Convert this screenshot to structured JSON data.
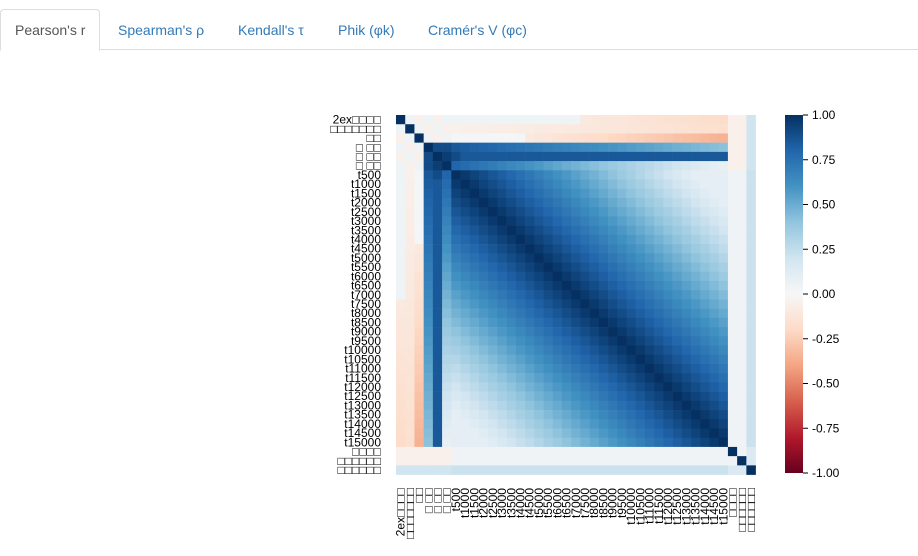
{
  "tabs": [
    {
      "label": "Pearson's r",
      "active": true
    },
    {
      "label": "Spearman's ρ",
      "active": false
    },
    {
      "label": "Kendall's τ",
      "active": false
    },
    {
      "label": "Phik (φk)",
      "active": false
    },
    {
      "label": "Cramér's V (φc)",
      "active": false
    }
  ],
  "chart_data": {
    "type": "heatmap",
    "labels": [
      "2ex□□□□",
      "□□□□□□□",
      "□□",
      "□ □□",
      "□ □□",
      "□ □□",
      "t500",
      "t1000",
      "t1500",
      "t2000",
      "t2500",
      "t3000",
      "t3500",
      "t4000",
      "t4500",
      "t5000",
      "t5500",
      "t6000",
      "t6500",
      "t7000",
      "t7500",
      "t8000",
      "t8500",
      "t9000",
      "t9500",
      "t10000",
      "t10500",
      "t11000",
      "t11500",
      "t12000",
      "t12500",
      "t13000",
      "t13500",
      "t14000",
      "t14500",
      "t15000",
      "□□□□",
      "□□□□□□",
      "□□□□□□"
    ],
    "colorbar": {
      "min": -1.0,
      "max": 1.0,
      "ticks": [
        "1.00",
        "0.75",
        "0.50",
        "0.25",
        "0.00",
        "-0.25",
        "-0.50",
        "-0.75",
        "-1.00"
      ]
    },
    "palette": [
      "#67001f",
      "#b2182b",
      "#d6604d",
      "#f4a582",
      "#fddbc7",
      "#f7f7f7",
      "#d1e5f0",
      "#92c5de",
      "#4393c3",
      "#2166ac",
      "#053061"
    ]
  }
}
